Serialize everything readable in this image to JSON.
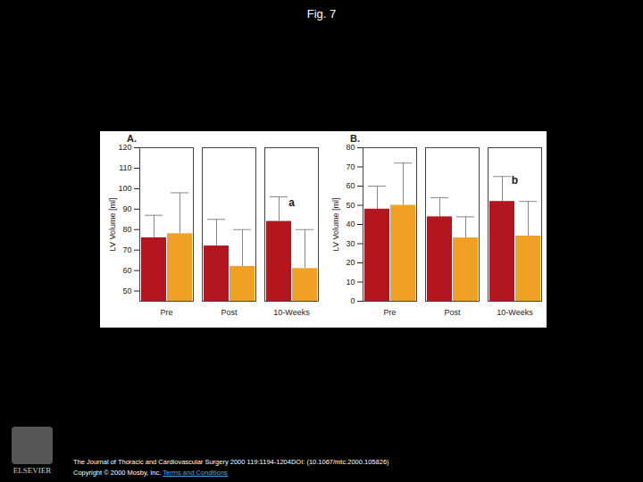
{
  "title": "Fig. 7",
  "publisher": "ELSEVIER",
  "caption": {
    "citation": "The Journal of Thoracic and Cardiovascular Surgery 2000 119:1194-1204DOI: (10.1067/mtc.2000.105826)",
    "copyright": "Copyright © 2000 Mosby, Inc.",
    "link": "Terms and Conditions"
  },
  "chart_data": [
    {
      "type": "bar",
      "title": "A.",
      "y_label": "LV Volume [ml]",
      "categories": [
        "Pre",
        "Post",
        "10-Weeks"
      ],
      "series": [
        {
          "color": "#b3161f",
          "values": [
            76,
            72,
            84
          ],
          "errors": [
            11,
            13,
            12
          ]
        },
        {
          "color": "#f0a125",
          "values": [
            78,
            62,
            61
          ],
          "errors": [
            20,
            18,
            19
          ]
        }
      ],
      "ylim": [
        45,
        120
      ],
      "yticks": [
        50,
        60,
        70,
        80,
        90,
        100,
        110,
        120
      ],
      "annotations": [
        {
          "text": "a",
          "category": "10-Weeks",
          "y": 93
        }
      ],
      "grid": false
    },
    {
      "type": "bar",
      "title": "B.",
      "y_label": "LV Volume [ml]",
      "categories": [
        "Pre",
        "Post",
        "10-Weeks"
      ],
      "series": [
        {
          "color": "#b3161f",
          "values": [
            48,
            44,
            52
          ],
          "errors": [
            12,
            10,
            13
          ]
        },
        {
          "color": "#f0a125",
          "values": [
            50,
            33,
            34
          ],
          "errors": [
            22,
            11,
            18
          ]
        }
      ],
      "ylim": [
        0,
        80
      ],
      "yticks": [
        0,
        10,
        20,
        30,
        40,
        50,
        60,
        70,
        80
      ],
      "annotations": [
        {
          "text": "b",
          "category": "10-Weeks",
          "y": 63
        }
      ],
      "grid": false
    }
  ]
}
